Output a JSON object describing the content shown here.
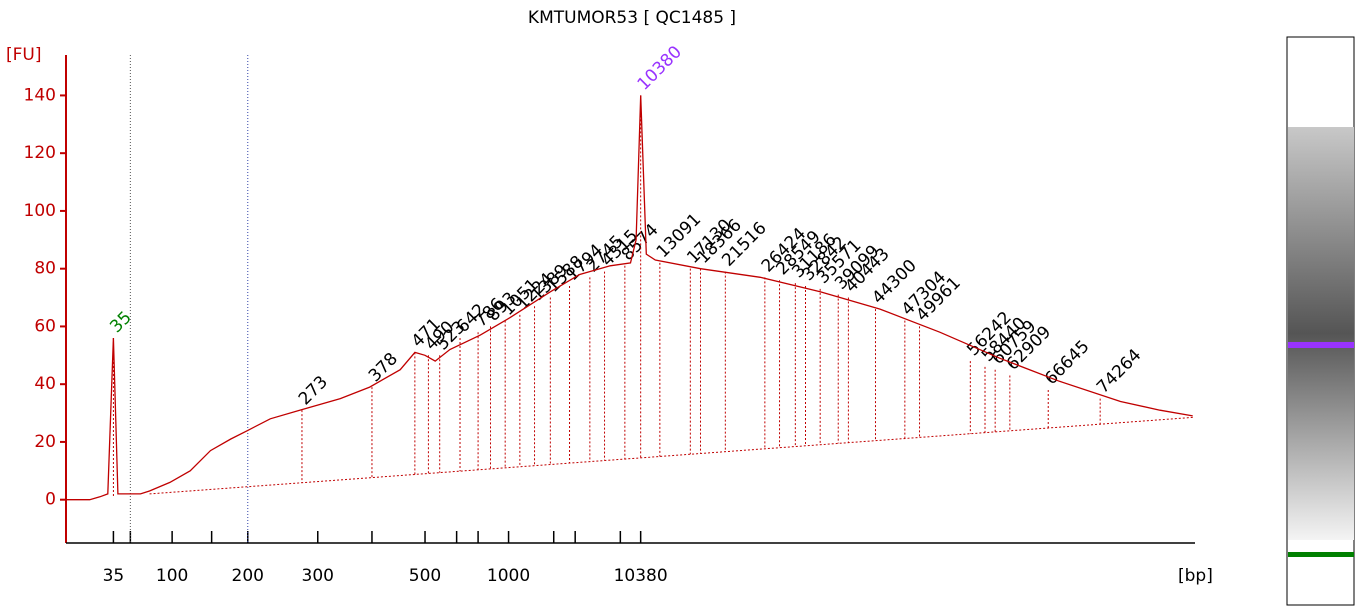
{
  "chart_data": {
    "type": "line",
    "title": "KMTUMOR53  [ QC1485 ]",
    "y_label": "[FU]",
    "x_label": "[bp]",
    "ylim": [
      -15,
      154
    ],
    "yticks": [
      0,
      20,
      40,
      60,
      80,
      100,
      120,
      140
    ],
    "xlim": [
      0,
      100
    ],
    "xticks": [
      {
        "value": 4.2,
        "label": "35"
      },
      {
        "value": 9.4,
        "label": "100"
      },
      {
        "value": 16.1,
        "label": "200"
      },
      {
        "value": 22.3,
        "label": "300"
      },
      {
        "value": 31.8,
        "label": "500"
      },
      {
        "value": 39.2,
        "label": "1000"
      },
      {
        "value": 50.9,
        "label": "10380"
      }
    ],
    "xminor_ticks": [
      5.7,
      12.9,
      27.1,
      34.6,
      36.5,
      43.2,
      45.1,
      49.1
    ],
    "region_bounds": [
      5.7,
      16.1
    ],
    "series": [
      {
        "color": "#c00000",
        "x": [
          0,
          2.1,
          3.0,
          3.7,
          4.2,
          4.6,
          6.6,
          7.4,
          9.2,
          11.0,
          12.8,
          14.6,
          16.1,
          18.1,
          20.7,
          24.3,
          26.9,
          29.6,
          30.9,
          31.8,
          32.7,
          34.0,
          36.7,
          39.3,
          42.9,
          45.5,
          48.2,
          50.0,
          50.5,
          50.9,
          51.4,
          52.2,
          56.2,
          61.5,
          66.8,
          72.1,
          77.4,
          82.7,
          88.0,
          93.4,
          96.9,
          99.8
        ],
        "values": [
          0,
          0,
          1,
          2,
          56,
          2,
          2,
          3,
          6,
          10,
          17,
          21,
          24,
          28,
          31,
          35,
          39,
          45,
          51,
          50,
          48,
          52,
          57,
          63,
          72,
          78,
          81,
          82,
          90,
          140,
          85,
          83,
          80,
          77,
          72,
          66,
          58,
          49,
          41,
          34,
          31,
          29
        ]
      }
    ],
    "baseline": {
      "color": "#c00000",
      "x": [
        7.4,
        99.8
      ],
      "values": [
        2,
        28.5
      ]
    },
    "peak_color": "#000000",
    "peaks": [
      {
        "label": 35,
        "x": 4.2,
        "y": 56,
        "color": "#008000"
      },
      {
        "label": 273,
        "x": 20.9,
        "y": 31
      },
      {
        "label": 378,
        "x": 27.1,
        "y": 39
      },
      {
        "label": 471,
        "x": 30.9,
        "y": 51
      },
      {
        "label": 490,
        "x": 32.1,
        "y": 50
      },
      {
        "label": 523,
        "x": 33.1,
        "y": 50
      },
      {
        "label": 642,
        "x": 34.9,
        "y": 56
      },
      {
        "label": 786,
        "x": 36.5,
        "y": 58
      },
      {
        "label": 893,
        "x": 37.6,
        "y": 60
      },
      {
        "label": 1051,
        "x": 38.9,
        "y": 62
      },
      {
        "label": 1224,
        "x": 40.2,
        "y": 64
      },
      {
        "label": 1389,
        "x": 41.5,
        "y": 67
      },
      {
        "label": 1588,
        "x": 42.9,
        "y": 70
      },
      {
        "label": 1794,
        "x": 44.6,
        "y": 74
      },
      {
        "label": 2745,
        "x": 46.4,
        "y": 77
      },
      {
        "label": 4315,
        "x": 47.7,
        "y": 79
      },
      {
        "label": 8574,
        "x": 49.5,
        "y": 81
      },
      {
        "label": 10380,
        "x": 50.9,
        "y": 140,
        "color": "#9933ff"
      },
      {
        "label": 13091,
        "x": 52.6,
        "y": 82
      },
      {
        "label": 17130,
        "x": 55.3,
        "y": 80
      },
      {
        "label": 18366,
        "x": 56.2,
        "y": 80
      },
      {
        "label": 21516,
        "x": 58.4,
        "y": 79
      },
      {
        "label": 26424,
        "x": 61.9,
        "y": 77
      },
      {
        "label": 28549,
        "x": 63.2,
        "y": 76
      },
      {
        "label": 31186,
        "x": 64.6,
        "y": 75
      },
      {
        "label": 32842,
        "x": 65.5,
        "y": 74
      },
      {
        "label": 35571,
        "x": 66.8,
        "y": 73
      },
      {
        "label": 39099,
        "x": 68.4,
        "y": 71
      },
      {
        "label": 40443,
        "x": 69.3,
        "y": 70
      },
      {
        "label": 44300,
        "x": 71.7,
        "y": 66
      },
      {
        "label": 47304,
        "x": 74.3,
        "y": 62
      },
      {
        "label": 49961,
        "x": 75.6,
        "y": 60
      },
      {
        "label": 56242,
        "x": 80.1,
        "y": 48
      },
      {
        "label": 58440,
        "x": 81.4,
        "y": 46
      },
      {
        "label": 60759,
        "x": 82.3,
        "y": 45
      },
      {
        "label": 62909,
        "x": 83.6,
        "y": 43
      },
      {
        "label": 66645,
        "x": 87.0,
        "y": 38
      },
      {
        "label": 74264,
        "x": 91.6,
        "y": 35
      }
    ]
  }
}
